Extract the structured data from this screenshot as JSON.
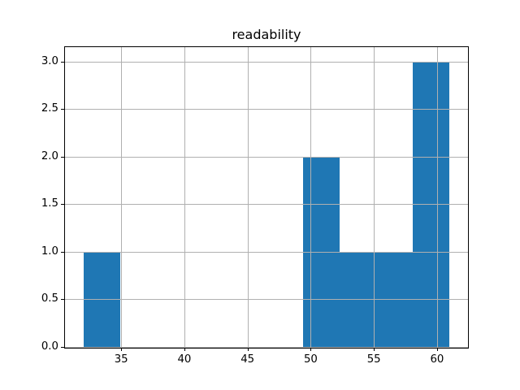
{
  "chart_data": {
    "type": "bar",
    "subtype": "histogram",
    "title": "readability",
    "xlabel": "",
    "ylabel": "",
    "bin_edges": [
      32.0,
      34.9,
      37.8,
      40.7,
      43.6,
      46.5,
      49.4,
      52.3,
      55.2,
      58.1,
      61.0
    ],
    "counts": [
      1,
      0,
      0,
      0,
      0,
      0,
      2,
      1,
      1,
      3
    ],
    "xlim": [
      30.55,
      62.45
    ],
    "ylim": [
      0,
      3.15
    ],
    "x_ticks": [
      35,
      40,
      45,
      50,
      55,
      60
    ],
    "x_tick_labels": [
      "35",
      "40",
      "45",
      "50",
      "55",
      "60"
    ],
    "y_ticks": [
      0.0,
      0.5,
      1.0,
      1.5,
      2.0,
      2.5,
      3.0
    ],
    "y_tick_labels": [
      "0.0",
      "0.5",
      "1.0",
      "1.5",
      "2.0",
      "2.5",
      "3.0"
    ],
    "grid": true,
    "legend": false,
    "colors": {
      "bar": "#1f77b4",
      "grid": "#b0b0b0",
      "spine": "#000000",
      "background": "#ffffff",
      "text": "#000000"
    }
  }
}
